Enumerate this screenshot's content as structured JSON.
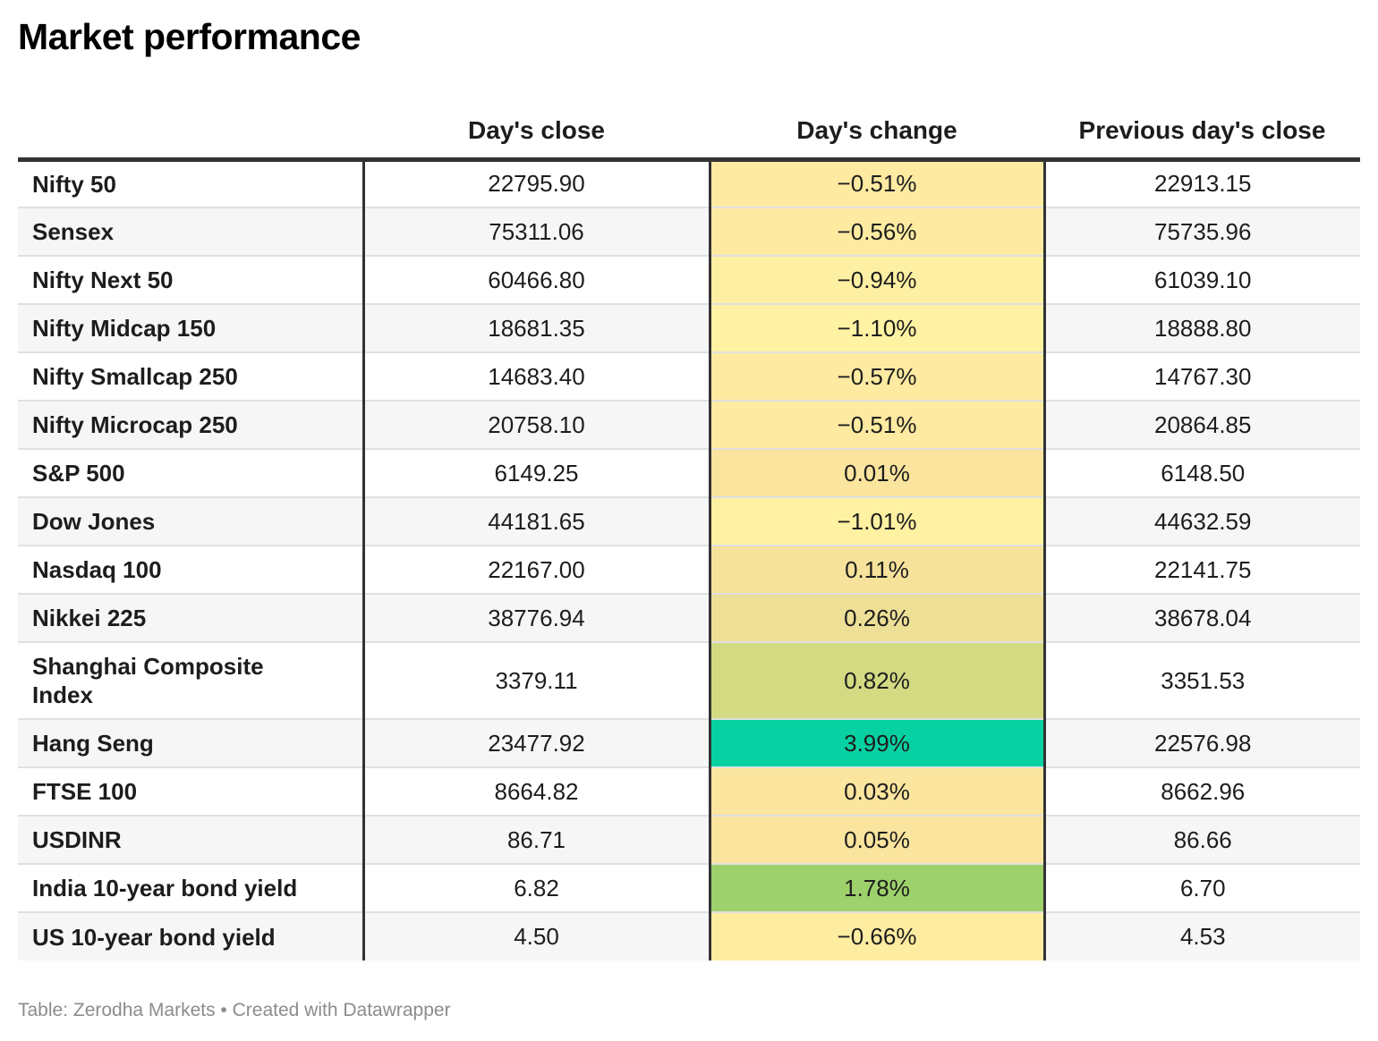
{
  "title": "Market performance",
  "table": {
    "headers": [
      "",
      "Day's close",
      "Day's change",
      "Previous day's close"
    ],
    "rows": [
      {
        "name": "Nifty 50",
        "close": "22795.90",
        "change": "−0.51%",
        "prev": "22913.15",
        "change_color": "#feeaa1"
      },
      {
        "name": "Sensex",
        "close": "75311.06",
        "change": "−0.56%",
        "prev": "75735.96",
        "change_color": "#feeba1"
      },
      {
        "name": "Nifty Next 50",
        "close": "60466.80",
        "change": "−0.94%",
        "prev": "61039.10",
        "change_color": "#fef0a2"
      },
      {
        "name": "Nifty Midcap 150",
        "close": "18681.35",
        "change": "−1.10%",
        "prev": "18888.80",
        "change_color": "#fff2a3"
      },
      {
        "name": "Nifty Smallcap 250",
        "close": "14683.40",
        "change": "−0.57%",
        "prev": "14767.30",
        "change_color": "#feeba1"
      },
      {
        "name": "Nifty Microcap 250",
        "close": "20758.10",
        "change": "−0.51%",
        "prev": "20864.85",
        "change_color": "#feeaa1"
      },
      {
        "name": "S&P 500",
        "close": "6149.25",
        "change": "0.01%",
        "prev": "6148.50",
        "change_color": "#fbe49e"
      },
      {
        "name": "Dow Jones",
        "close": "44181.65",
        "change": "−1.01%",
        "prev": "44632.59",
        "change_color": "#fff1a2"
      },
      {
        "name": "Nasdaq 100",
        "close": "22167.00",
        "change": "0.11%",
        "prev": "22141.75",
        "change_color": "#f7e29b"
      },
      {
        "name": "Nikkei 225",
        "close": "38776.94",
        "change": "0.26%",
        "prev": "38678.04",
        "change_color": "#eedf97"
      },
      {
        "name": "Shanghai Composite Index",
        "close": "3379.11",
        "change": "0.82%",
        "prev": "3351.53",
        "change_color": "#d3da82",
        "tall": true
      },
      {
        "name": "Hang Seng",
        "close": "23477.92",
        "change": "3.99%",
        "prev": "22576.98",
        "change_color": "#07d1a2"
      },
      {
        "name": "FTSE 100",
        "close": "8664.82",
        "change": "0.03%",
        "prev": "8662.96",
        "change_color": "#fce59e"
      },
      {
        "name": "USDINR",
        "close": "86.71",
        "change": "0.05%",
        "prev": "86.66",
        "change_color": "#fbe49e"
      },
      {
        "name": "India 10-year bond yield",
        "close": "6.82",
        "change": "1.78%",
        "prev": "6.70",
        "change_color": "#9dd16b"
      },
      {
        "name": "US 10-year bond yield",
        "close": "4.50",
        "change": "−0.66%",
        "prev": "4.53",
        "change_color": "#feeca1"
      }
    ]
  },
  "footer": "Table: Zerodha Markets • Created with Datawrapper"
}
